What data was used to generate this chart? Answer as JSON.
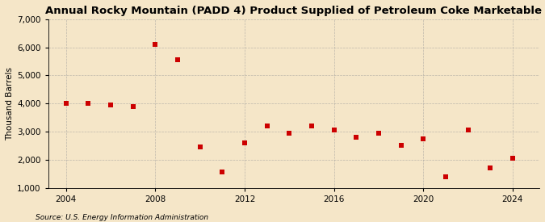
{
  "title": "Annual Rocky Mountain (PADD 4) Product Supplied of Petroleum Coke Marketable",
  "ylabel": "Thousand Barrels",
  "source": "Source: U.S. Energy Information Administration",
  "years": [
    2004,
    2005,
    2006,
    2007,
    2008,
    2009,
    2010,
    2011,
    2012,
    2013,
    2014,
    2015,
    2016,
    2017,
    2018,
    2019,
    2020,
    2021,
    2022,
    2023,
    2024
  ],
  "values": [
    4000,
    4000,
    3950,
    3900,
    6100,
    5550,
    2450,
    1550,
    2600,
    3200,
    2950,
    3200,
    3050,
    2800,
    2950,
    2500,
    2750,
    1400,
    3050,
    1700,
    2050
  ],
  "marker_color": "#cc0000",
  "marker": "s",
  "marker_size": 4,
  "background_color": "#f5e6c8",
  "grid_color": "#999999",
  "ylim": [
    1000,
    7000
  ],
  "xlim": [
    2003.2,
    2025.2
  ],
  "xticks": [
    2004,
    2008,
    2012,
    2016,
    2020,
    2024
  ],
  "yticks": [
    1000,
    2000,
    3000,
    4000,
    5000,
    6000,
    7000
  ],
  "title_fontsize": 9.5,
  "label_fontsize": 7.5,
  "tick_fontsize": 7.5,
  "source_fontsize": 6.5
}
